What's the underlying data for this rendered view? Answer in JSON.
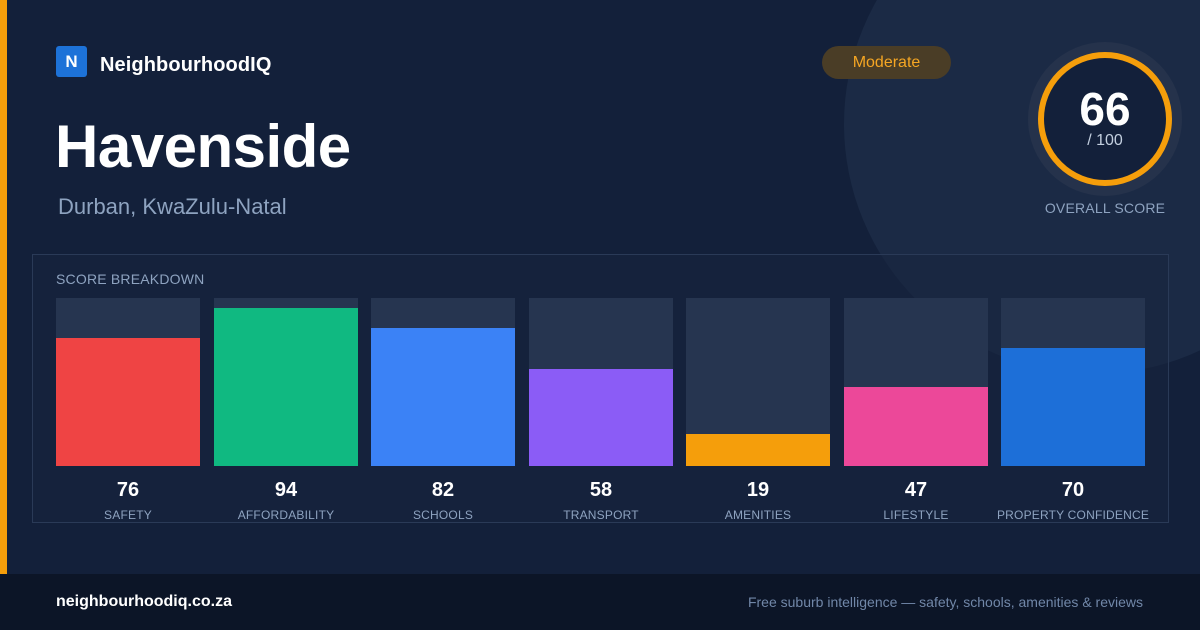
{
  "brand": {
    "logo_letter": "N",
    "name": "NeighbourhoodIQ"
  },
  "place": {
    "name": "Havenside",
    "location": "Durban, KwaZulu-Natal"
  },
  "rating": {
    "label": "Moderate",
    "color": "#f5a623"
  },
  "overall": {
    "score": "66",
    "max_label": "/ 100",
    "caption": "OVERALL SCORE",
    "value": 66,
    "max": 100,
    "color": "#f59e0b"
  },
  "breakdown": {
    "title": "SCORE BREAKDOWN"
  },
  "chart_data": {
    "type": "bar",
    "categories": [
      "SAFETY",
      "AFFORDABILITY",
      "SCHOOLS",
      "TRANSPORT",
      "AMENITIES",
      "LIFESTYLE",
      "PROPERTY CONFIDENCE"
    ],
    "values": [
      76,
      94,
      82,
      58,
      19,
      47,
      70
    ],
    "colors": [
      "#ef4444",
      "#10b981",
      "#3b82f6",
      "#8b5cf6",
      "#f59e0b",
      "#ec4899",
      "#1d6fd8"
    ],
    "ylim": [
      0,
      100
    ],
    "grid": false
  },
  "footer": {
    "url": "neighbourhoodiq.co.za",
    "tagline": "Free suburb intelligence — safety, schools, amenities & reviews"
  }
}
